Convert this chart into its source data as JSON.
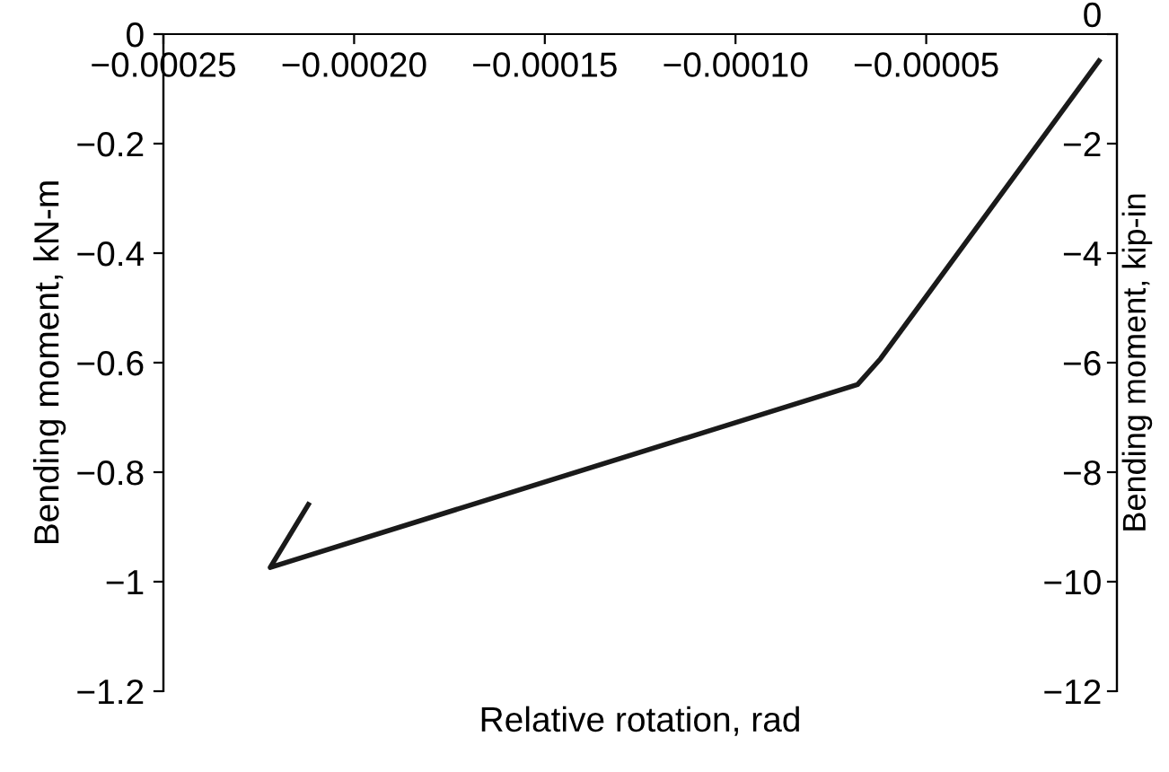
{
  "chart_data": {
    "type": "line",
    "xlabel": "Relative rotation, rad",
    "ylabel": "Bending moment, kN-m",
    "y2label": "Bending moment, kip-in",
    "series": [
      {
        "color": "#1a1a1a",
        "x": [
          -4.7e-06,
          -6.2e-05,
          -6.8e-05,
          -0.000222,
          -0.000212
        ],
        "values": [
          -0.049,
          -0.593,
          -0.64,
          -0.974,
          -0.859
        ]
      }
    ],
    "xlim": [
      -0.00025,
      0
    ],
    "ylim": [
      -1.2,
      0
    ],
    "y2lim": [
      -12,
      0
    ],
    "xticks": [
      {
        "value": -0.00025,
        "label": "−0.00025"
      },
      {
        "value": -0.0002,
        "label": "−0.00020"
      },
      {
        "value": -0.00015,
        "label": "−0.00015"
      },
      {
        "value": -0.0001,
        "label": "−0.00010"
      },
      {
        "value": -5e-05,
        "label": "−0.00005"
      }
    ],
    "yticks": [
      0,
      {
        "value": -0.2,
        "label": "−0.2"
      },
      {
        "value": -0.4,
        "label": "−0.4"
      },
      {
        "value": -0.6,
        "label": "−0.6"
      },
      {
        "value": -0.8,
        "label": "−0.8"
      },
      {
        "value": -1,
        "label": "−1"
      },
      {
        "value": -1.2,
        "label": "−1.2"
      }
    ],
    "y2ticks": [
      0,
      {
        "value": -2,
        "label": "−2"
      },
      {
        "value": -4,
        "label": "−4"
      },
      {
        "value": -6,
        "label": "−6"
      },
      {
        "value": -8,
        "label": "−8"
      },
      {
        "value": -10,
        "label": "−10"
      },
      {
        "value": -12,
        "label": "−12"
      }
    ],
    "grid": false,
    "legend": false,
    "marker": "none",
    "line_style": "solid"
  }
}
